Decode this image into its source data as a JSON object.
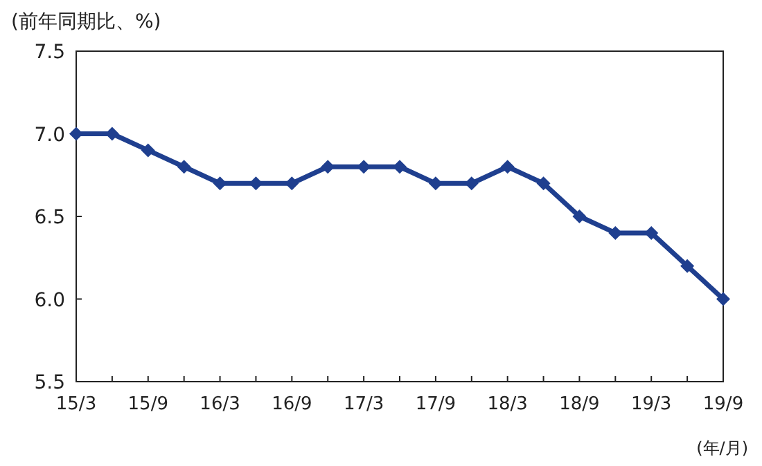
{
  "chart_data": {
    "type": "line",
    "ylabel": "(前年同期比、%)",
    "xlabel": "(年/月)",
    "categories": [
      "15/3",
      null,
      "15/9",
      null,
      "16/3",
      null,
      "16/9",
      null,
      "17/3",
      null,
      "17/9",
      null,
      "18/3",
      null,
      "18/9",
      null,
      "19/3",
      null,
      "19/9"
    ],
    "series": [
      {
        "color": "#1f3f8f",
        "values": [
          7.0,
          7.0,
          6.9,
          6.8,
          6.7,
          6.7,
          6.7,
          6.8,
          6.8,
          6.8,
          6.7,
          6.7,
          6.8,
          6.7,
          6.5,
          6.4,
          6.4,
          6.2,
          6.0
        ]
      }
    ],
    "ylim": [
      5.5,
      7.5
    ],
    "yticks": [
      {
        "value": 5.5,
        "label": "5.5"
      },
      {
        "value": 6,
        "label": "6.0"
      },
      {
        "value": 6.5,
        "label": "6.5"
      },
      {
        "value": 7,
        "label": "7.0"
      },
      {
        "value": 7.5,
        "label": "7.5"
      }
    ],
    "grid": false,
    "marker": "diamond",
    "line_style": "solid"
  }
}
